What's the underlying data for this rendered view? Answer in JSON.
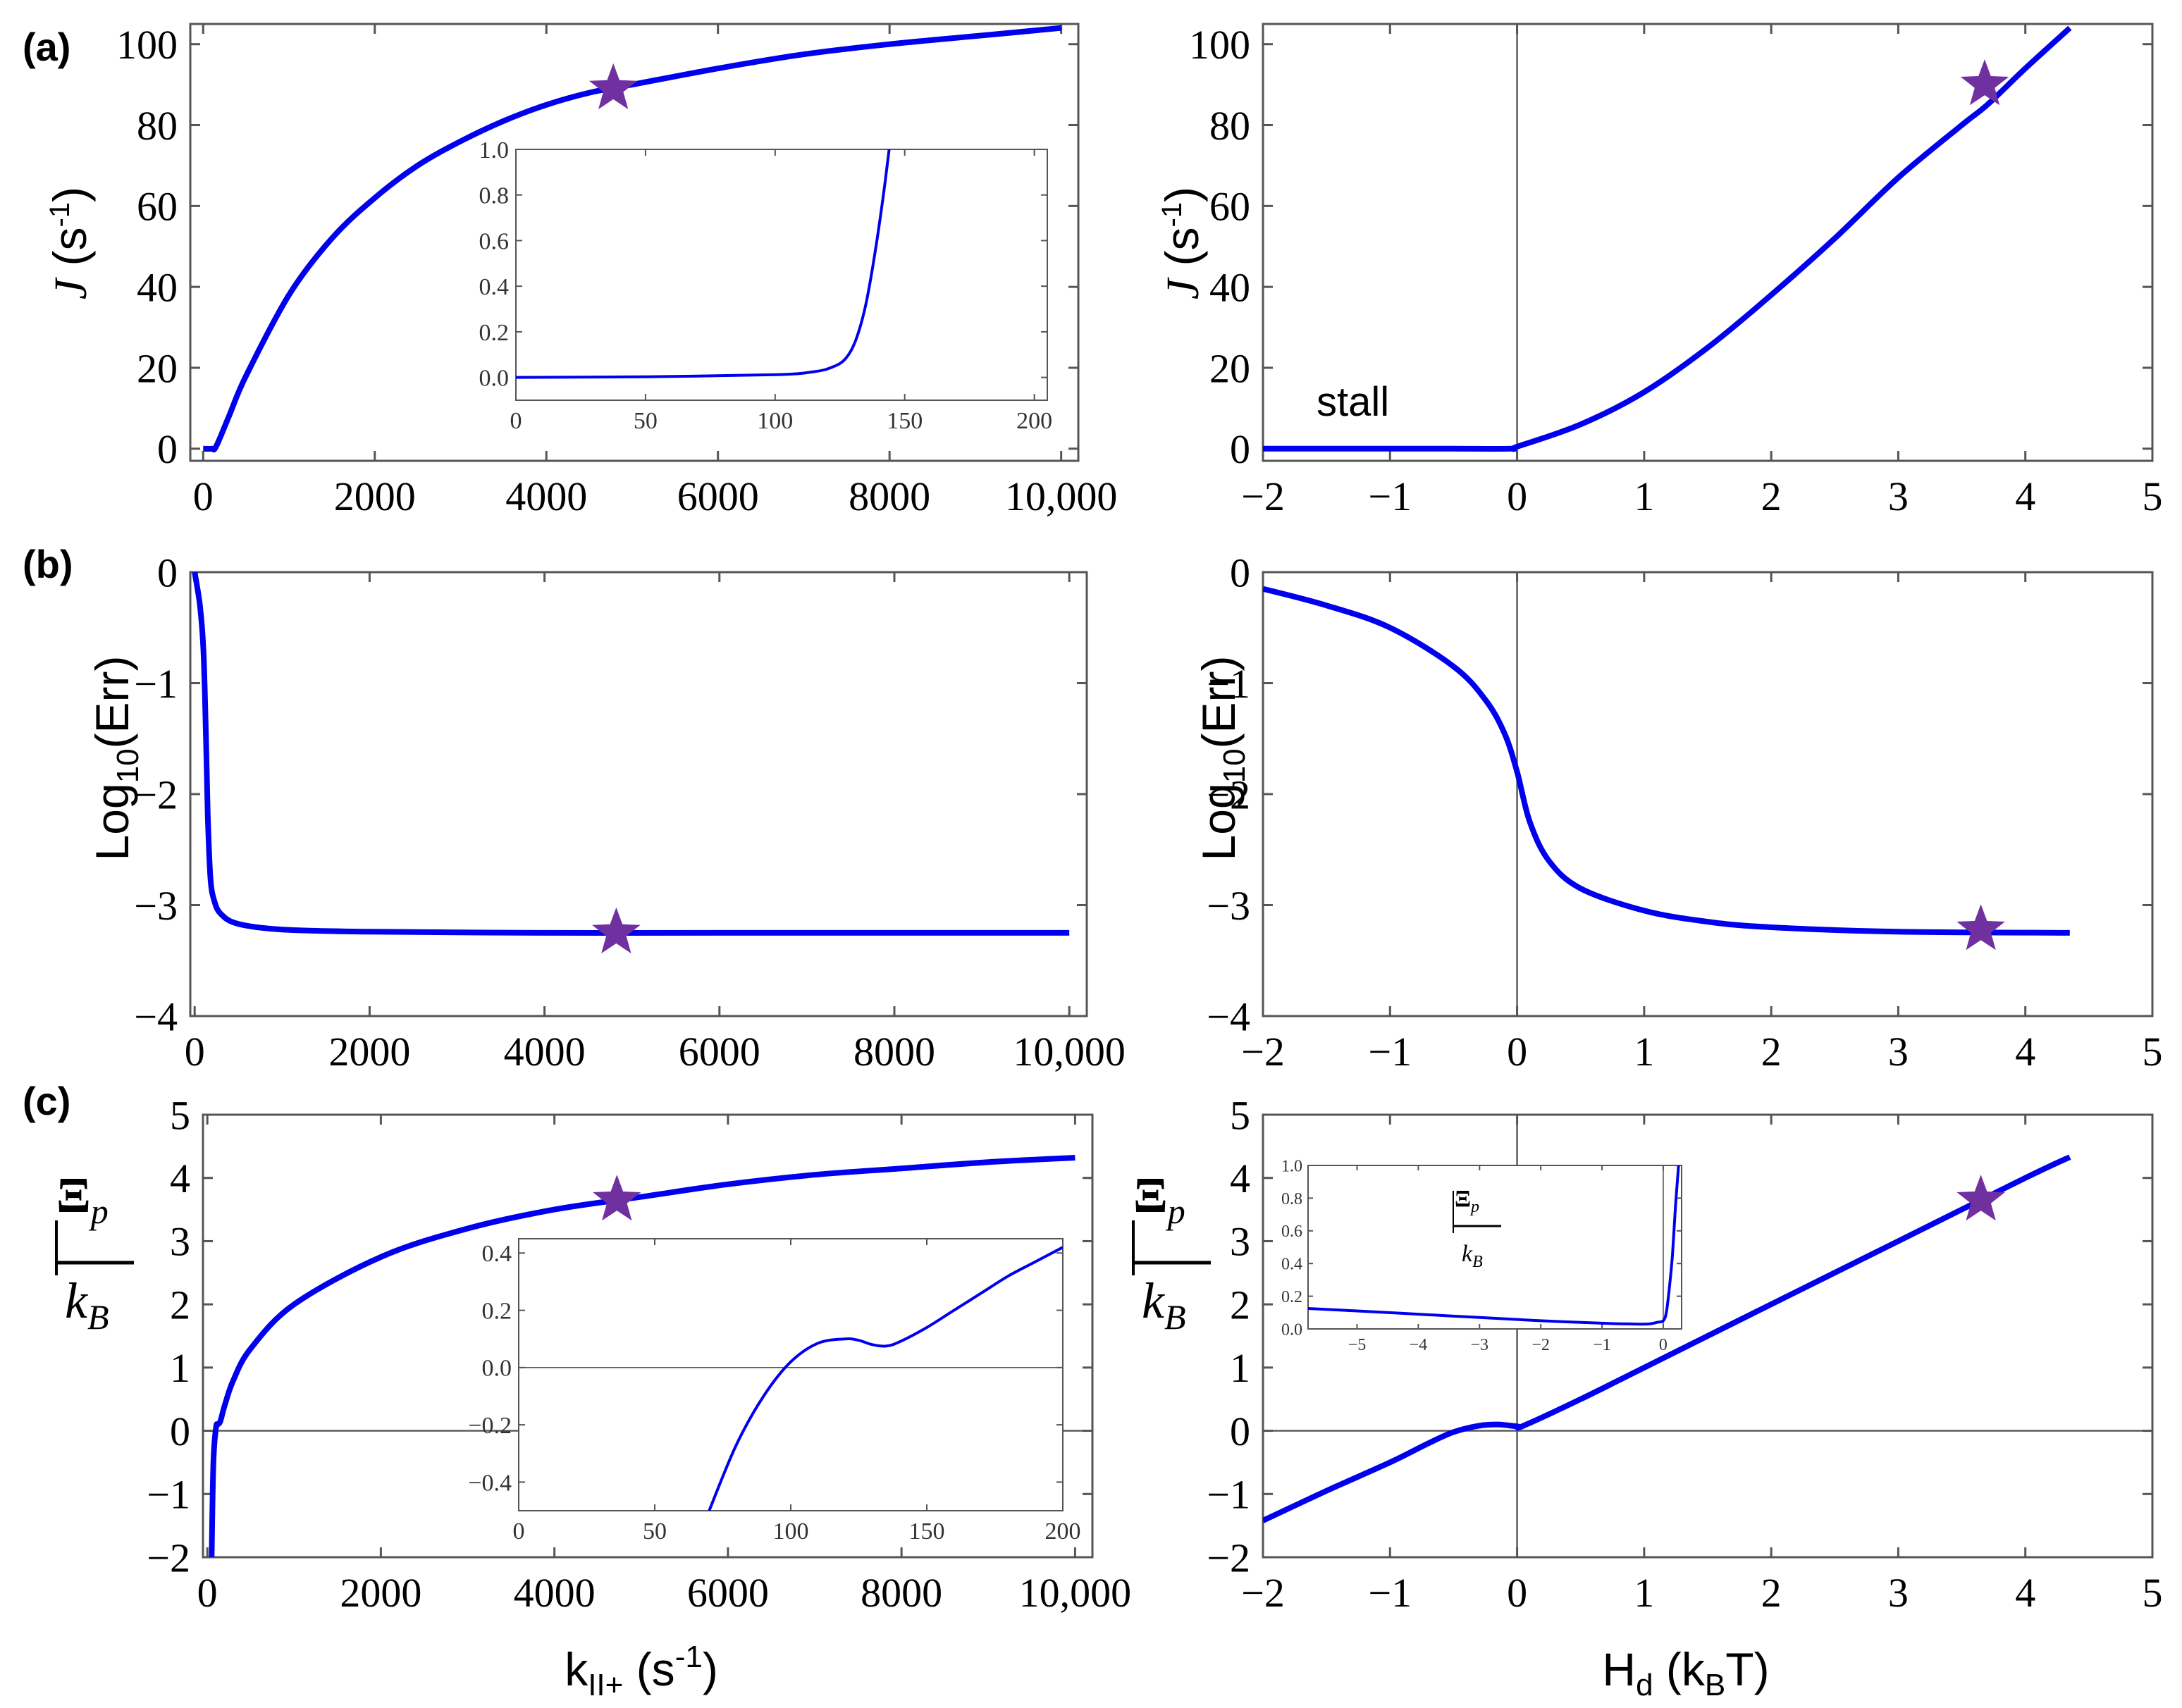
{
  "panel_labels": [
    "(a)",
    "(b)",
    "(c)"
  ],
  "colors": {
    "curve": "#0000ee",
    "star": "#7030a0",
    "axis": "#555555",
    "zero_line": "#555555"
  },
  "x_axis_labels": {
    "left_main": "k",
    "left_sub": "II+",
    "left_unit_open": " (s",
    "left_unit_sup": "-1",
    "left_unit_close": ")",
    "right_main": "H",
    "right_sub": "d",
    "right_unit_open": " (k",
    "right_unit_sub": "B",
    "right_unit_close": "T)"
  },
  "y_axis_labels": {
    "J_main": "J",
    "J_unit_open": " (s",
    "J_unit_sup": "-1",
    "J_unit_close": ")",
    "Err_main": "Log",
    "Err_sub": "10",
    "Err_close": "(Err)",
    "Xi_num": "Ξ",
    "Xi_sub": "p",
    "Xi_den": "k",
    "Xi_den_sub": "B"
  },
  "annotations": {
    "stall": "stall"
  },
  "chart_data": [
    {
      "id": "a-left",
      "type": "line",
      "panel": "(a)",
      "xlabel": "k_II+ (s^-1)",
      "ylabel": "J (s^-1)",
      "xlim": [
        -150,
        10200
      ],
      "ylim": [
        -3,
        105
      ],
      "xticks": [
        0,
        2000,
        4000,
        6000,
        8000,
        10000
      ],
      "xtick_labels": [
        "0",
        "2000",
        "4000",
        "6000",
        "8000",
        "10,000"
      ],
      "yticks": [
        0,
        20,
        40,
        60,
        80,
        100
      ],
      "ytick_labels": [
        "0",
        "20",
        "40",
        "60",
        "80",
        "100"
      ],
      "series": [
        {
          "name": "J",
          "x": [
            0,
            100,
            150,
            300,
            500,
            1000,
            1500,
            2000,
            2500,
            3000,
            3500,
            4000,
            4500,
            5000,
            6000,
            7000,
            8000,
            9000,
            10000
          ],
          "y": [
            0,
            0,
            0.5,
            8,
            18,
            38,
            52,
            62,
            70,
            76,
            81,
            85,
            88,
            90,
            94,
            97.5,
            100,
            102,
            104
          ]
        }
      ],
      "star": {
        "x": 4780,
        "y": 89
      },
      "inset": {
        "xlim": [
          0,
          205
        ],
        "ylim": [
          -0.1,
          1.0
        ],
        "xticks": [
          0,
          50,
          100,
          150,
          200
        ],
        "xtick_labels": [
          "0",
          "50",
          "100",
          "150",
          "200"
        ],
        "yticks": [
          0.0,
          0.2,
          0.4,
          0.6,
          0.8,
          1.0
        ],
        "ytick_labels": [
          "0.0",
          "0.2",
          "0.4",
          "0.6",
          "0.8",
          "1.0"
        ],
        "x": [
          0,
          50,
          100,
          115,
          122,
          127,
          131,
          135,
          139,
          142,
          144
        ],
        "y": [
          0,
          0.003,
          0.012,
          0.025,
          0.045,
          0.08,
          0.16,
          0.32,
          0.58,
          0.82,
          1.0
        ]
      }
    },
    {
      "id": "a-right",
      "type": "line",
      "panel": "(a)",
      "xlabel": "H_d (k_B T)",
      "ylabel": "J (s^-1)",
      "xlim": [
        -2,
        5
      ],
      "ylim": [
        -3,
        105
      ],
      "xticks": [
        -2,
        -1,
        0,
        1,
        2,
        3,
        4,
        5
      ],
      "xtick_labels": [
        "−2",
        "−1",
        "0",
        "1",
        "2",
        "3",
        "4",
        "5"
      ],
      "yticks": [
        0,
        20,
        40,
        60,
        80,
        100
      ],
      "ytick_labels": [
        "0",
        "20",
        "40",
        "60",
        "80",
        "100"
      ],
      "zero_x": 0,
      "series": [
        {
          "name": "J",
          "x": [
            -2,
            -1,
            -0.5,
            -0.05,
            0,
            0.5,
            1,
            1.5,
            2,
            2.5,
            3,
            3.5,
            3.7,
            4,
            4.35
          ],
          "y": [
            0,
            0,
            0,
            0,
            0.5,
            6,
            14,
            25,
            38,
            52,
            67,
            80,
            85,
            94,
            104
          ]
        }
      ],
      "star": {
        "x": 3.68,
        "y": 90
      }
    },
    {
      "id": "b-left",
      "type": "line",
      "panel": "(b)",
      "xlabel": "k_II+ (s^-1)",
      "ylabel": "Log10(Err)",
      "xlim": [
        -50,
        10200
      ],
      "ylim": [
        -4,
        0
      ],
      "xticks": [
        0,
        2000,
        4000,
        6000,
        8000,
        10000
      ],
      "xtick_labels": [
        "0",
        "2000",
        "4000",
        "6000",
        "8000",
        "10,000"
      ],
      "yticks": [
        -4,
        -3,
        -2,
        -1,
        0
      ],
      "ytick_labels": [
        "−4",
        "−3",
        "−2",
        "−1",
        "0"
      ],
      "series": [
        {
          "name": "Log10(Err)",
          "x": [
            0,
            60,
            100,
            130,
            150,
            180,
            220,
            300,
            500,
            1000,
            2000,
            4000,
            6000,
            10000
          ],
          "y": [
            0,
            -0.3,
            -0.7,
            -1.5,
            -2.2,
            -2.75,
            -2.95,
            -3.08,
            -3.17,
            -3.22,
            -3.24,
            -3.25,
            -3.25,
            -3.25
          ]
        }
      ],
      "star": {
        "x": 4820,
        "y": -3.25
      }
    },
    {
      "id": "b-right",
      "type": "line",
      "panel": "(b)",
      "xlabel": "H_d (k_B T)",
      "ylabel": "Log10(Err)",
      "xlim": [
        -2,
        5
      ],
      "ylim": [
        -4,
        0
      ],
      "xticks": [
        -2,
        -1,
        0,
        1,
        2,
        3,
        4,
        5
      ],
      "xtick_labels": [
        "−2",
        "−1",
        "0",
        "1",
        "2",
        "3",
        "4",
        "5"
      ],
      "yticks": [
        -4,
        -3,
        -2,
        -1,
        0
      ],
      "ytick_labels": [
        "−4",
        "−3",
        "−2",
        "−1",
        "0"
      ],
      "zero_x": 0,
      "series": [
        {
          "name": "Log10(Err)",
          "x": [
            -2,
            -1.5,
            -1,
            -0.5,
            -0.25,
            -0.1,
            0,
            0.1,
            0.25,
            0.5,
            1,
            1.5,
            2,
            3,
            4.35
          ],
          "y": [
            -0.15,
            -0.3,
            -0.5,
            -0.85,
            -1.15,
            -1.45,
            -1.8,
            -2.25,
            -2.6,
            -2.85,
            -3.05,
            -3.15,
            -3.2,
            -3.24,
            -3.25
          ]
        }
      ],
      "star": {
        "x": 3.65,
        "y": -3.22
      }
    },
    {
      "id": "c-left",
      "type": "line",
      "panel": "(c)",
      "xlabel": "k_II+ (s^-1)",
      "ylabel": "Ξ_p / k_B",
      "xlim": [
        -50,
        10200
      ],
      "ylim": [
        -2,
        5
      ],
      "xticks": [
        0,
        2000,
        4000,
        6000,
        8000,
        10000
      ],
      "xtick_labels": [
        "0",
        "2000",
        "4000",
        "6000",
        "8000",
        "10,000"
      ],
      "yticks": [
        -2,
        -1,
        0,
        1,
        2,
        3,
        4,
        5
      ],
      "ytick_labels": [
        "−2",
        "−1",
        "0",
        "1",
        "2",
        "3",
        "4",
        "5"
      ],
      "zero_y": 0,
      "series": [
        {
          "name": "Ξp/kB",
          "x": [
            50,
            70,
            100,
            120,
            150,
            200,
            300,
            500,
            1000,
            2000,
            3000,
            4000,
            5000,
            6000,
            7000,
            8000,
            9000,
            10000
          ],
          "y": [
            -2,
            -0.5,
            0.05,
            0.1,
            0.15,
            0.4,
            0.8,
            1.3,
            2.0,
            2.75,
            3.2,
            3.5,
            3.7,
            3.9,
            4.05,
            4.15,
            4.25,
            4.32
          ]
        }
      ],
      "star": {
        "x": 4720,
        "y": 3.65
      },
      "inset": {
        "xlim": [
          0,
          200
        ],
        "ylim": [
          -0.5,
          0.45
        ],
        "xticks": [
          0,
          50,
          100,
          150,
          200
        ],
        "xtick_labels": [
          "0",
          "50",
          "100",
          "150",
          "200"
        ],
        "yticks": [
          -0.4,
          -0.2,
          0.0,
          0.2,
          0.4
        ],
        "ytick_labels": [
          "−0.4",
          "−0.2",
          "0.0",
          "0.2",
          "0.4"
        ],
        "zero_y": 0,
        "x": [
          70,
          80,
          90,
          100,
          110,
          120,
          125,
          130,
          135,
          140,
          150,
          160,
          170,
          180,
          190,
          200
        ],
        "y": [
          -0.5,
          -0.27,
          -0.1,
          0.02,
          0.085,
          0.1,
          0.095,
          0.08,
          0.075,
          0.09,
          0.14,
          0.2,
          0.26,
          0.32,
          0.37,
          0.42
        ]
      }
    },
    {
      "id": "c-right",
      "type": "line",
      "panel": "(c)",
      "xlabel": "H_d (k_B T)",
      "ylabel": "Ξ_p / k_B",
      "xlim": [
        -2,
        5
      ],
      "ylim": [
        -2,
        5
      ],
      "xticks": [
        -2,
        -1,
        0,
        1,
        2,
        3,
        4,
        5
      ],
      "xtick_labels": [
        "−2",
        "−1",
        "0",
        "1",
        "2",
        "3",
        "4",
        "5"
      ],
      "yticks": [
        -2,
        -1,
        0,
        1,
        2,
        3,
        4,
        5
      ],
      "ytick_labels": [
        "−2",
        "−1",
        "0",
        "1",
        "2",
        "3",
        "4",
        "5"
      ],
      "zero_x": 0,
      "zero_y": 0,
      "series": [
        {
          "name": "Ξp/kB",
          "x": [
            -2,
            -1.5,
            -1,
            -0.7,
            -0.5,
            -0.3,
            -0.15,
            0,
            0.05,
            0.5,
            1,
            2,
            3,
            4,
            4.35
          ],
          "y": [
            -1.42,
            -0.95,
            -0.5,
            -0.2,
            -0.02,
            0.08,
            0.1,
            0.07,
            0.08,
            0.5,
            1.0,
            2.0,
            3.0,
            4.0,
            4.33
          ]
        }
      ],
      "star": {
        "x": 3.65,
        "y": 3.65
      },
      "inset": {
        "xlim": [
          -5.8,
          0.3
        ],
        "ylim": [
          0,
          1.0
        ],
        "xticks": [
          -5,
          -4,
          -3,
          -2,
          -1,
          0
        ],
        "xtick_labels": [
          "−5",
          "−4",
          "−3",
          "−2",
          "−1",
          "0"
        ],
        "yticks": [
          0.0,
          0.2,
          0.4,
          0.6,
          0.8,
          1.0
        ],
        "ytick_labels": [
          "0.0",
          "0.2",
          "0.4",
          "0.6",
          "0.8",
          "1.0"
        ],
        "zero_x": 0,
        "x": [
          -5.8,
          -5,
          -4,
          -3,
          -2,
          -1,
          -0.5,
          -0.25,
          -0.1,
          0,
          0.05,
          0.1,
          0.15,
          0.2,
          0.25
        ],
        "y": [
          0.125,
          0.11,
          0.09,
          0.07,
          0.05,
          0.035,
          0.03,
          0.03,
          0.04,
          0.05,
          0.1,
          0.25,
          0.45,
          0.75,
          1.0
        ]
      }
    }
  ]
}
